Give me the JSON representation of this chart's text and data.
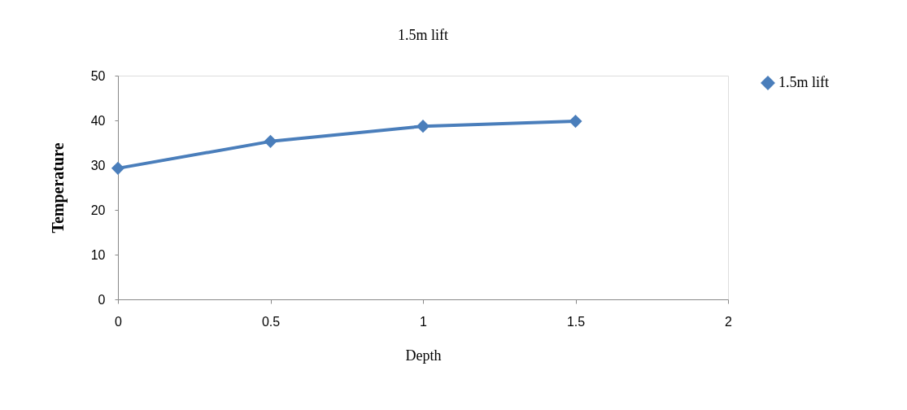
{
  "chart_data": {
    "type": "line",
    "title": "1.5m lift",
    "xlabel": "Depth",
    "ylabel": "Temperature",
    "x": [
      0,
      0.5,
      1,
      1.5
    ],
    "series": [
      {
        "name": "1.5m lift",
        "color": "#4a7ebb",
        "values": [
          29.3,
          35.3,
          38.7,
          39.8
        ]
      }
    ],
    "xlim": [
      0,
      2
    ],
    "xticks": [
      0,
      0.5,
      1,
      1.5,
      2
    ],
    "ylim": [
      0,
      50
    ],
    "yticks": [
      0,
      10,
      20,
      30,
      40,
      50
    ],
    "grid": false,
    "legend": "right",
    "marker": "diamond",
    "line_style": "solid"
  }
}
